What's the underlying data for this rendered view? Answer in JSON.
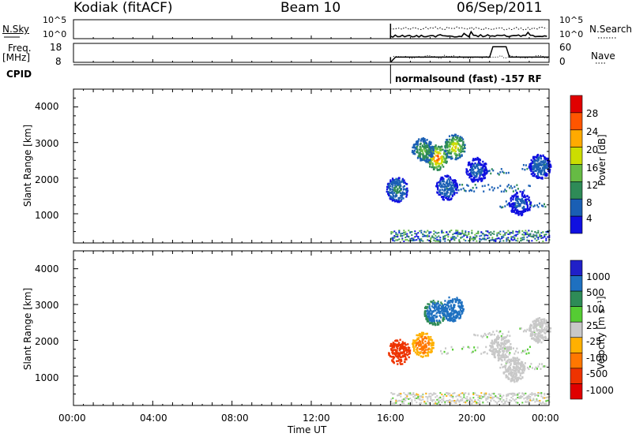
{
  "header": {
    "station": "Kodiak (fitACF)",
    "beam": "Beam 10",
    "date": "06/Sep/2011"
  },
  "panels": {
    "nsky_label": "N.Sky",
    "nsearch_label": "N.Search",
    "freq_label_line1": "Freq.",
    "freq_label_line2": "[MHz]",
    "nave_label": "Nave",
    "cpid_label": "CPID",
    "nsky_ticks": [
      "10^5",
      "10^0"
    ],
    "nsearch_ticks": [
      "10^5",
      "10^0"
    ],
    "freq_ticks": [
      "18",
      "8"
    ],
    "nave_ticks": [
      "60",
      "0"
    ],
    "cpid_text": "normalsound (fast) -157 RF"
  },
  "power_panel": {
    "ylabel": "Slant Range [km]",
    "yticks": [
      "4000",
      "3000",
      "2000",
      "1000"
    ],
    "colorbar_label": "Power [dB]",
    "colorbar_ticks": [
      "28",
      "24",
      "20",
      "16",
      "12",
      "8",
      "4"
    ]
  },
  "velocity_panel": {
    "ylabel": "Slant Range [km]",
    "yticks": [
      "4000",
      "3000",
      "2000",
      "1000"
    ],
    "colorbar_label": "Velocity [m s⁻¹]",
    "colorbar_ticks": [
      "1000",
      "500",
      "100",
      "25",
      "-25",
      "-100",
      "-500",
      "-1000"
    ]
  },
  "xaxis": {
    "label": "Time UT",
    "ticks": [
      "00:00",
      "04:00",
      "08:00",
      "12:00",
      "16:00",
      "20:00",
      "00:00"
    ]
  },
  "colors": {
    "power_scale": [
      "#1010e0",
      "#1a5fb4",
      "#2e8b57",
      "#66bb44",
      "#ccdd00",
      "#ffaa00",
      "#ff5500",
      "#e00000"
    ],
    "velocity_scale": [
      "#2020c8",
      "#1e70c0",
      "#2e8b57",
      "#55cc33",
      "#c8c8c8",
      "#ffb000",
      "#ff7700",
      "#ee3300",
      "#e00000"
    ]
  },
  "chart_data": [
    {
      "type": "heatmap",
      "name": "Power",
      "title": "Power [dB]",
      "xlabel": "Time UT",
      "ylabel": "Slant Range [km]",
      "xlim": [
        "00:00",
        "24:00"
      ],
      "ylim": [
        180,
        4500
      ],
      "zlim": [
        0,
        30
      ],
      "data_start": "16:00",
      "blobs": [
        {
          "t": 18.3,
          "r": 2600,
          "value": 26
        },
        {
          "t": 19.2,
          "r": 2900,
          "value": 20
        },
        {
          "t": 17.6,
          "r": 2800,
          "value": 14
        },
        {
          "t": 16.3,
          "r": 1700,
          "value": 10
        },
        {
          "t": 18.8,
          "r": 1750,
          "value": 8
        },
        {
          "t": 22.5,
          "r": 1300,
          "value": 6
        },
        {
          "t": 23.5,
          "r": 2350,
          "value": 8
        },
        {
          "t": 20.3,
          "r": 2250,
          "value": 6
        }
      ]
    },
    {
      "type": "heatmap",
      "name": "Velocity",
      "title": "Velocity [m s-1]",
      "xlabel": "Time UT",
      "ylabel": "Slant Range [km]",
      "xlim": [
        "00:00",
        "24:00"
      ],
      "ylim": [
        180,
        4500
      ],
      "zlim": [
        -1000,
        1000
      ],
      "data_start": "16:00",
      "blobs": [
        {
          "t": 18.2,
          "r": 2800,
          "value": 500
        },
        {
          "t": 19.1,
          "r": 2900,
          "value": 700
        },
        {
          "t": 16.4,
          "r": 1700,
          "value": -600
        },
        {
          "t": 17.6,
          "r": 1900,
          "value": -150
        },
        {
          "t": 21.5,
          "r": 1800,
          "value": 0
        },
        {
          "t": 23.5,
          "r": 2300,
          "value": 10
        },
        {
          "t": 22.2,
          "r": 1200,
          "value": 0
        }
      ]
    },
    {
      "type": "line",
      "name": "Frequency / Nave",
      "xlabel": "Time UT",
      "series": [
        {
          "name": "Freq.",
          "x": [
            "16:00",
            "16:15",
            "21:00",
            "21:10",
            "21:50",
            "22:00",
            "24:00"
          ],
          "values": [
            8,
            11,
            11,
            17,
            17,
            11,
            11
          ]
        }
      ],
      "ylim": [
        8,
        18
      ]
    }
  ]
}
